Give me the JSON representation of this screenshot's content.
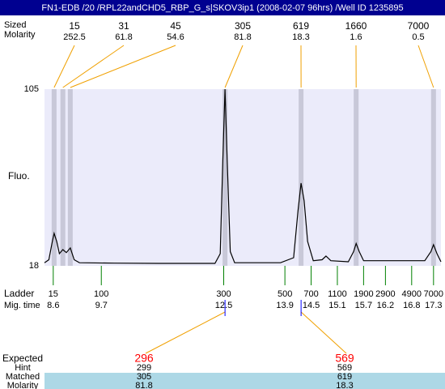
{
  "chart_data": {
    "type": "electropherogram",
    "title": "FN1-EDB /20 /RPL22andCHD5_RBP_G_s|SKOV3ip1 (2008-02-07 96hrs) /Well ID 1235895",
    "y_label": "Fluo.",
    "ylim": [
      18,
      105
    ],
    "yticks": [
      18,
      105
    ],
    "xlim": [
      8.4,
      17.47
    ],
    "peak_row_labels": [
      "Sized",
      "Molarity"
    ],
    "peaks": {
      "x": [
        8.62,
        8.82,
        8.99,
        12.53,
        14.27,
        15.53,
        17.3
      ],
      "size": [
        15,
        31,
        45,
        305,
        619,
        1660,
        7000
      ],
      "molarity": [
        252.5,
        61.8,
        54.6,
        81.8,
        18.3,
        1.6,
        0.5
      ]
    },
    "trace": {
      "color": "#000000",
      "x": [
        8.4,
        8.5,
        8.58,
        8.62,
        8.68,
        8.74,
        8.82,
        8.9,
        8.99,
        9.08,
        9.2,
        10,
        11,
        12.3,
        12.42,
        12.48,
        12.53,
        12.58,
        12.65,
        12.75,
        13.8,
        14.1,
        14.2,
        14.27,
        14.34,
        14.42,
        14.55,
        14.75,
        14.84,
        14.95,
        15.35,
        15.47,
        15.53,
        15.6,
        15.7,
        17.1,
        17.24,
        17.3,
        17.38,
        17.47
      ],
      "values": [
        19.5,
        21,
        30,
        34,
        30,
        24,
        26,
        24.5,
        26.8,
        21,
        19.5,
        19.3,
        19.2,
        19.2,
        24,
        70,
        105,
        70,
        25,
        19.5,
        19.5,
        22,
        45,
        58.7,
        50,
        30,
        20.5,
        21,
        22.8,
        20.5,
        20,
        25,
        29,
        25,
        20.5,
        20.5,
        25,
        28.4,
        24,
        20
      ]
    },
    "ladder": {
      "label": "Ladder",
      "time_label": "Mig. time",
      "color": "#008000",
      "sizes": [
        15,
        100,
        300,
        500,
        700,
        1100,
        1900,
        2900,
        4900,
        7000
      ],
      "times": [
        8.6,
        9.7,
        12.5,
        13.9,
        14.5,
        15.1,
        15.7,
        16.2,
        16.8,
        17.3
      ]
    },
    "table": {
      "row_labels": [
        "Expected",
        "Hint",
        "Matched",
        "Molarity"
      ],
      "expected": [
        296,
        569
      ],
      "hint": [
        299,
        569
      ],
      "matched": [
        305,
        619
      ],
      "molarity": [
        81.8,
        18.3
      ]
    }
  }
}
